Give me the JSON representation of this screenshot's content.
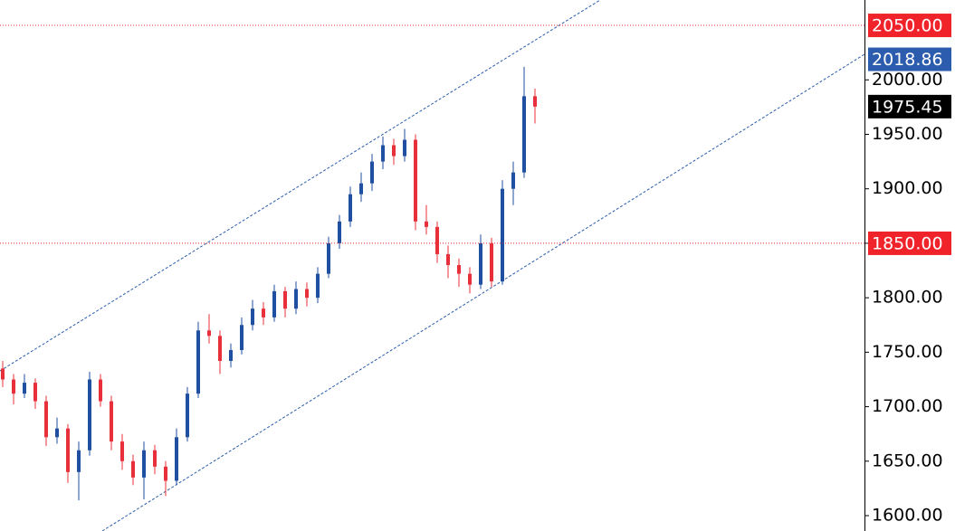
{
  "chart_data": {
    "type": "candlestick",
    "open": [
      1735,
      1725,
      1712,
      1722,
      1705,
      1672,
      1680,
      1640,
      1660,
      1725,
      1705,
      1668,
      1650,
      1635,
      1660,
      1645,
      1632,
      1672,
      1712,
      1770,
      1765,
      1742,
      1752,
      1775,
      1790,
      1782,
      1806,
      1790,
      1808,
      1800,
      1822,
      1850,
      1870,
      1895,
      1905,
      1925,
      1940,
      1930,
      1945,
      1870,
      1865,
      1840,
      1830,
      1822,
      1812,
      1850,
      1815,
      1900,
      1915,
      1985
    ],
    "high": [
      1742,
      1730,
      1730,
      1726,
      1710,
      1690,
      1684,
      1668,
      1732,
      1730,
      1710,
      1675,
      1656,
      1668,
      1665,
      1650,
      1680,
      1718,
      1778,
      1785,
      1770,
      1758,
      1782,
      1798,
      1796,
      1812,
      1810,
      1815,
      1814,
      1828,
      1856,
      1876,
      1902,
      1915,
      1932,
      1948,
      1946,
      1955,
      1950,
      1885,
      1870,
      1848,
      1836,
      1828,
      1858,
      1855,
      1908,
      1925,
      2012,
      1992
    ],
    "low": [
      1718,
      1702,
      1708,
      1698,
      1664,
      1666,
      1630,
      1614,
      1655,
      1700,
      1660,
      1642,
      1628,
      1615,
      1638,
      1618,
      1628,
      1668,
      1708,
      1758,
      1730,
      1736,
      1748,
      1770,
      1775,
      1778,
      1782,
      1785,
      1792,
      1795,
      1818,
      1845,
      1865,
      1888,
      1898,
      1918,
      1922,
      1925,
      1862,
      1858,
      1832,
      1818,
      1810,
      1804,
      1808,
      1810,
      1812,
      1885,
      1910,
      1960
    ],
    "close": [
      1725,
      1712,
      1722,
      1705,
      1672,
      1680,
      1640,
      1660,
      1725,
      1705,
      1668,
      1650,
      1635,
      1660,
      1645,
      1632,
      1672,
      1712,
      1770,
      1765,
      1742,
      1752,
      1775,
      1790,
      1782,
      1806,
      1790,
      1808,
      1800,
      1822,
      1850,
      1870,
      1895,
      1905,
      1925,
      1940,
      1930,
      1945,
      1870,
      1865,
      1840,
      1830,
      1822,
      1812,
      1850,
      1815,
      1900,
      1915,
      1985,
      1975.45
    ],
    "up_color": "#1f4fa0",
    "down_color": "#e8303a",
    "ylim": [
      1585.9,
      2073.3
    ],
    "yticks": [
      {
        "value": 1600,
        "label": "1600.00"
      },
      {
        "value": 1650,
        "label": "1650.00"
      },
      {
        "value": 1700,
        "label": "1700.00"
      },
      {
        "value": 1750,
        "label": "1750.00"
      },
      {
        "value": 1800,
        "label": "1800.00"
      },
      {
        "value": 1850,
        "label": "1850.00"
      },
      {
        "value": 1900,
        "label": "1900.00"
      },
      {
        "value": 1950,
        "label": "1950.00"
      },
      {
        "value": 2000,
        "label": "2000.00"
      }
    ],
    "price_labels": [
      {
        "value": 2050,
        "label": "2050.00",
        "color": "#f0232b",
        "line": true
      },
      {
        "value": 2018.86,
        "label": "2018.86",
        "color": "#2b5cad",
        "line": false
      },
      {
        "value": 1975.45,
        "label": "1975.45",
        "color": "#000000",
        "line": false
      },
      {
        "value": 1850,
        "label": "1850.00",
        "color": "#f0232b",
        "line": true
      }
    ]
  }
}
